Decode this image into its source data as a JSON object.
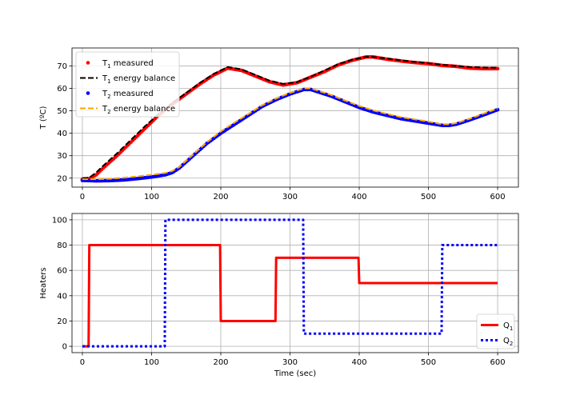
{
  "chart_data": [
    {
      "type": "line",
      "title": "",
      "ylabel": "T (ºC)",
      "xlabel": "",
      "xlim": [
        -15,
        630
      ],
      "ylim": [
        16,
        78
      ],
      "xticks": [
        0,
        100,
        200,
        300,
        400,
        500,
        600
      ],
      "yticks": [
        20,
        30,
        40,
        50,
        60,
        70
      ],
      "grid": true,
      "legend_position": "upper-left",
      "series": [
        {
          "name": "T1 measured",
          "name_main": "T",
          "name_sub": "1",
          "name_rest": " measured",
          "style": "dots",
          "color": "#ff0000",
          "points": [
            [
              0,
              19.5
            ],
            [
              10,
              19.8
            ],
            [
              20,
              21.5
            ],
            [
              30,
              24.5
            ],
            [
              50,
              30
            ],
            [
              70,
              36
            ],
            [
              90,
              42
            ],
            [
              110,
              48
            ],
            [
              130,
              53
            ],
            [
              150,
              57.5
            ],
            [
              170,
              62
            ],
            [
              190,
              66
            ],
            [
              210,
              69
            ],
            [
              230,
              68
            ],
            [
              250,
              65.5
            ],
            [
              270,
              63
            ],
            [
              290,
              61.5
            ],
            [
              310,
              62.5
            ],
            [
              330,
              65
            ],
            [
              350,
              67.5
            ],
            [
              370,
              70.5
            ],
            [
              390,
              72.5
            ],
            [
              410,
              74
            ],
            [
              420,
              74
            ],
            [
              440,
              73
            ],
            [
              460,
              72.2
            ],
            [
              480,
              71.5
            ],
            [
              500,
              71
            ],
            [
              520,
              70.2
            ],
            [
              540,
              69.8
            ],
            [
              560,
              69
            ],
            [
              580,
              68.8
            ],
            [
              600,
              68.8
            ]
          ]
        },
        {
          "name": "T1 energy balance",
          "name_main": "T",
          "name_sub": "1",
          "name_rest": " energy balance",
          "style": "dashed",
          "color": "#000000",
          "points": [
            [
              0,
              20
            ],
            [
              10,
              20.2
            ],
            [
              20,
              22.5
            ],
            [
              30,
              25.5
            ],
            [
              50,
              31
            ],
            [
              70,
              37
            ],
            [
              90,
              43
            ],
            [
              110,
              48.5
            ],
            [
              130,
              53.5
            ],
            [
              150,
              58
            ],
            [
              170,
              62.5
            ],
            [
              190,
              66.5
            ],
            [
              210,
              69.5
            ],
            [
              230,
              68.5
            ],
            [
              250,
              66
            ],
            [
              270,
              63.5
            ],
            [
              290,
              62
            ],
            [
              310,
              62.8
            ],
            [
              330,
              65.2
            ],
            [
              350,
              68
            ],
            [
              370,
              70.8
            ],
            [
              390,
              72.8
            ],
            [
              410,
              74
            ],
            [
              420,
              74
            ],
            [
              440,
              73.3
            ],
            [
              460,
              72.5
            ],
            [
              480,
              71.8
            ],
            [
              500,
              71.2
            ],
            [
              520,
              70.5
            ],
            [
              540,
              70
            ],
            [
              560,
              69.5
            ],
            [
              580,
              69.3
            ],
            [
              600,
              69.2
            ]
          ]
        },
        {
          "name": "T2 measured",
          "name_main": "T",
          "name_sub": "2",
          "name_rest": " measured",
          "style": "dots",
          "color": "#0000ff",
          "points": [
            [
              0,
              19
            ],
            [
              20,
              18.8
            ],
            [
              40,
              18.9
            ],
            [
              60,
              19.2
            ],
            [
              80,
              19.8
            ],
            [
              100,
              20.5
            ],
            [
              120,
              21.5
            ],
            [
              130,
              22.5
            ],
            [
              140,
              24.5
            ],
            [
              160,
              30
            ],
            [
              180,
              35.5
            ],
            [
              200,
              40
            ],
            [
              220,
              44
            ],
            [
              240,
              48
            ],
            [
              260,
              52
            ],
            [
              280,
              55
            ],
            [
              300,
              57.5
            ],
            [
              320,
              59.5
            ],
            [
              330,
              59.5
            ],
            [
              340,
              58.5
            ],
            [
              360,
              56.5
            ],
            [
              380,
              54
            ],
            [
              400,
              51.5
            ],
            [
              420,
              49.5
            ],
            [
              440,
              48
            ],
            [
              460,
              46.5
            ],
            [
              480,
              45.5
            ],
            [
              500,
              44.5
            ],
            [
              520,
              43.5
            ],
            [
              530,
              43.5
            ],
            [
              540,
              44
            ],
            [
              560,
              46
            ],
            [
              580,
              48.2
            ],
            [
              600,
              50.5
            ]
          ]
        },
        {
          "name": "T2 energy balance",
          "name_main": "T",
          "name_sub": "2",
          "name_rest": " energy balance",
          "style": "dashed",
          "color": "#ffa500",
          "points": [
            [
              0,
              19.5
            ],
            [
              20,
              19.5
            ],
            [
              40,
              19.7
            ],
            [
              60,
              20.2
            ],
            [
              80,
              20.8
            ],
            [
              100,
              21.5
            ],
            [
              120,
              22.3
            ],
            [
              130,
              23.2
            ],
            [
              140,
              25
            ],
            [
              160,
              30.5
            ],
            [
              180,
              36
            ],
            [
              200,
              40.8
            ],
            [
              220,
              44.8
            ],
            [
              240,
              48.6
            ],
            [
              260,
              52.5
            ],
            [
              280,
              55.5
            ],
            [
              300,
              58
            ],
            [
              320,
              60
            ],
            [
              330,
              60
            ],
            [
              340,
              59
            ],
            [
              360,
              57
            ],
            [
              380,
              54.5
            ],
            [
              400,
              52.2
            ],
            [
              420,
              50.2
            ],
            [
              440,
              48.6
            ],
            [
              460,
              47.2
            ],
            [
              480,
              46.2
            ],
            [
              500,
              45.2
            ],
            [
              520,
              44
            ],
            [
              530,
              44
            ],
            [
              540,
              44.5
            ],
            [
              560,
              46.5
            ],
            [
              580,
              48.8
            ],
            [
              600,
              51
            ]
          ]
        }
      ]
    },
    {
      "type": "line",
      "title": "",
      "ylabel": "Heaters",
      "xlabel": "Time (sec)",
      "xlim": [
        -15,
        630
      ],
      "ylim": [
        -5,
        105
      ],
      "xticks": [
        0,
        100,
        200,
        300,
        400,
        500,
        600
      ],
      "yticks": [
        0,
        20,
        40,
        60,
        80,
        100
      ],
      "grid": true,
      "legend_position": "lower-right",
      "series": [
        {
          "name": "Q1",
          "name_main": "Q",
          "name_sub": "1",
          "name_rest": "",
          "style": "solid",
          "color": "#ff0000",
          "points": [
            [
              0,
              0
            ],
            [
              9,
              0
            ],
            [
              10,
              80
            ],
            [
              199,
              80
            ],
            [
              200,
              20
            ],
            [
              279,
              20
            ],
            [
              280,
              70
            ],
            [
              399,
              70
            ],
            [
              400,
              50
            ],
            [
              600,
              50
            ]
          ]
        },
        {
          "name": "Q2",
          "name_main": "Q",
          "name_sub": "2",
          "name_rest": "",
          "style": "dotted",
          "color": "#0000ff",
          "points": [
            [
              0,
              0
            ],
            [
              119,
              0
            ],
            [
              120,
              100
            ],
            [
              319,
              100
            ],
            [
              320,
              10
            ],
            [
              519,
              10
            ],
            [
              520,
              80
            ],
            [
              600,
              80
            ]
          ]
        }
      ]
    }
  ]
}
